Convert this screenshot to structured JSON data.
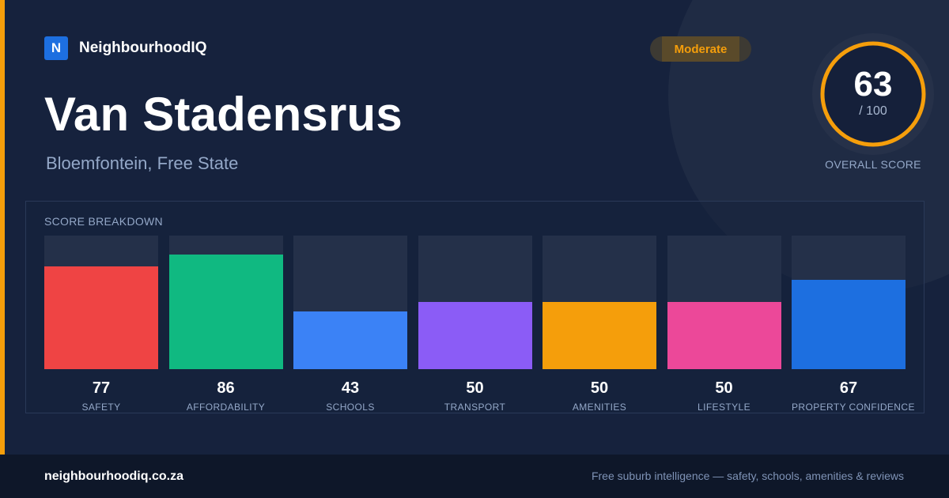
{
  "brand": {
    "logo_letter": "N",
    "name": "NeighbourhoodIQ"
  },
  "suburb": {
    "name": "Van Stadensrus",
    "location": "Bloemfontein, Free State"
  },
  "rating_badge": {
    "label": "Moderate",
    "color": "#f59e0b"
  },
  "overall": {
    "score": "63",
    "max": "/ 100",
    "fraction": 0.63,
    "label": "OVERALL SCORE",
    "ring_color": "#f59e0b"
  },
  "breakdown": {
    "title": "SCORE BREAKDOWN",
    "scale_max": 100,
    "items": [
      {
        "label": "SAFETY",
        "value": "77",
        "color": "#ef4444"
      },
      {
        "label": "AFFORDABILITY",
        "value": "86",
        "color": "#10b981"
      },
      {
        "label": "SCHOOLS",
        "value": "43",
        "color": "#3b82f6"
      },
      {
        "label": "TRANSPORT",
        "value": "50",
        "color": "#8b5cf6"
      },
      {
        "label": "AMENITIES",
        "value": "50",
        "color": "#f59e0b"
      },
      {
        "label": "LIFESTYLE",
        "value": "50",
        "color": "#ec4899"
      },
      {
        "label": "PROPERTY CONFIDENCE",
        "value": "67",
        "color": "#1d6fe0"
      }
    ]
  },
  "footer": {
    "domain": "neighbourhoodiq.co.za",
    "tagline": "Free suburb intelligence — safety, schools, amenities & reviews"
  }
}
